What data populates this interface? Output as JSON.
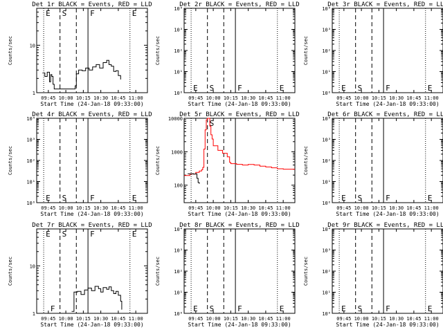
{
  "figure": {
    "x_tick_labels": [
      "09:45",
      "10:00",
      "10:15",
      "10:30",
      "10:45",
      "11:00"
    ],
    "x_axis_label": "Start Time (24-Jan-18 09:33:00)",
    "y_axis_label": "Counts/sec",
    "colors": {
      "events": "#000000",
      "lld": "#ff0000",
      "axes": "#000000",
      "background": "#ffffff"
    }
  },
  "chart_data": [
    {
      "type": "line",
      "title": "Det 1r BLACK = Events, RED = LLD",
      "ylabel": "Counts/sec",
      "xlabel": "Start Time (24-Jan-18 09:33:00)",
      "y_scale": "log",
      "ylim": [
        1,
        60
      ],
      "y_ticks": [
        {
          "v": 1,
          "t": "1"
        },
        {
          "v": 10,
          "t": "10"
        }
      ],
      "xlim": [
        "09:35",
        "11:10"
      ],
      "events_series": [
        [
          "09:40",
          2.6
        ],
        [
          "09:42",
          2.2
        ],
        [
          "09:44",
          2.7
        ],
        [
          "09:46",
          1.7
        ],
        [
          "09:47",
          2.4
        ],
        [
          "09:48",
          2.2
        ],
        [
          "09:49",
          1.5
        ],
        [
          "09:50",
          1.2
        ],
        [
          "10:08",
          1.4
        ],
        [
          "10:09",
          2.5
        ],
        [
          "10:11",
          3.0
        ],
        [
          "10:14",
          2.9
        ],
        [
          "10:17",
          3.3
        ],
        [
          "10:20",
          3.0
        ],
        [
          "10:23",
          3.5
        ],
        [
          "10:26",
          3.9
        ],
        [
          "10:29",
          3.3
        ],
        [
          "10:32",
          4.3
        ],
        [
          "10:35",
          4.8
        ],
        [
          "10:37",
          3.9
        ],
        [
          "10:39",
          3.6
        ],
        [
          "10:41",
          2.8
        ],
        [
          "10:43",
          2.9
        ],
        [
          "10:45",
          2.3
        ],
        [
          "10:47",
          1.9
        ]
      ],
      "lld_series": [],
      "markers": [
        {
          "label": "E",
          "time": "09:41",
          "pos": "top"
        },
        {
          "label": "S",
          "time": "09:55",
          "pos": "top"
        },
        {
          "label": "F",
          "time": "10:19",
          "pos": "top"
        },
        {
          "label": "E",
          "time": "10:55",
          "pos": "top"
        }
      ]
    },
    {
      "type": "line",
      "title": "Det 2r BLACK = Events, RED = LLD",
      "ylabel": "Counts/sec",
      "xlabel": "Start Time (24-Jan-18 09:33:00)",
      "y_scale": "log",
      "ylim": [
        1,
        10000
      ],
      "y_ticks": [
        {
          "v": 1,
          "t": "10⁰"
        },
        {
          "v": 10,
          "t": "10¹"
        },
        {
          "v": 100,
          "t": "10²"
        },
        {
          "v": 1000,
          "t": "10³"
        },
        {
          "v": 10000,
          "t": "10⁴"
        }
      ],
      "xlim": [
        "09:35",
        "11:10"
      ],
      "events_series": [],
      "lld_series": [],
      "markers": [
        {
          "label": "E",
          "time": "09:41",
          "pos": "bottom"
        },
        {
          "label": "S",
          "time": "09:55",
          "pos": "bottom"
        },
        {
          "label": "F",
          "time": "10:19",
          "pos": "bottom"
        },
        {
          "label": "E",
          "time": "10:55",
          "pos": "bottom"
        }
      ]
    },
    {
      "type": "line",
      "title": "Det 3r BLACK = Events, RED = LLD",
      "ylabel": "Counts/sec",
      "xlabel": "Start Time (24-Jan-18 09:33:00)",
      "y_scale": "log",
      "ylim": [
        1,
        10000
      ],
      "y_ticks": [
        {
          "v": 1,
          "t": "10⁰"
        },
        {
          "v": 10,
          "t": "10¹"
        },
        {
          "v": 100,
          "t": "10²"
        },
        {
          "v": 1000,
          "t": "10³"
        },
        {
          "v": 10000,
          "t": "10⁴"
        }
      ],
      "xlim": [
        "09:35",
        "11:10"
      ],
      "events_series": [],
      "lld_series": [],
      "markers": [
        {
          "label": "E",
          "time": "09:41",
          "pos": "bottom"
        },
        {
          "label": "S",
          "time": "09:55",
          "pos": "bottom"
        },
        {
          "label": "F",
          "time": "10:19",
          "pos": "bottom"
        },
        {
          "label": "E",
          "time": "10:55",
          "pos": "bottom"
        }
      ]
    },
    {
      "type": "line",
      "title": "Det 4r BLACK = Events, RED = LLD",
      "ylabel": "Counts/sec",
      "xlabel": "Start Time (24-Jan-18 09:33:00)",
      "y_scale": "log",
      "ylim": [
        1,
        10000
      ],
      "y_ticks": [
        {
          "v": 1,
          "t": "10⁰"
        },
        {
          "v": 10,
          "t": "10¹"
        },
        {
          "v": 100,
          "t": "10²"
        },
        {
          "v": 1000,
          "t": "10³"
        },
        {
          "v": 10000,
          "t": "10⁴"
        }
      ],
      "xlim": [
        "09:35",
        "11:10"
      ],
      "events_series": [],
      "lld_series": [],
      "markers": [
        {
          "label": "E",
          "time": "09:41",
          "pos": "bottom"
        },
        {
          "label": "S",
          "time": "09:55",
          "pos": "bottom"
        },
        {
          "label": "F",
          "time": "10:19",
          "pos": "bottom"
        },
        {
          "label": "E",
          "time": "10:55",
          "pos": "bottom"
        }
      ]
    },
    {
      "type": "line",
      "title": "Det 5r BLACK = Events, RED = LLD",
      "ylabel": "Counts/sec",
      "xlabel": "Start Time (24-Jan-18 09:33:00)",
      "y_scale": "log",
      "ylim": [
        30,
        10000
      ],
      "y_ticks": [
        {
          "v": 100,
          "t": "100"
        },
        {
          "v": 1000,
          "t": "1000"
        },
        {
          "v": 10000,
          "t": "10000"
        }
      ],
      "xlim": [
        "09:35",
        "11:10"
      ],
      "events_series": [
        [
          "09:38",
          220
        ],
        [
          "09:43",
          215
        ],
        [
          "09:45",
          220
        ],
        [
          "09:46",
          160
        ],
        [
          "09:47",
          120
        ],
        [
          "09:48",
          110
        ]
      ],
      "lld_series": [
        [
          "09:35",
          195
        ],
        [
          "09:40",
          215
        ],
        [
          "09:45",
          240
        ],
        [
          "09:48",
          265
        ],
        [
          "09:50",
          290
        ],
        [
          "09:51",
          340
        ],
        [
          "09:52",
          1200
        ],
        [
          "09:53",
          4500
        ],
        [
          "09:54",
          9000
        ],
        [
          "09:55",
          10000
        ],
        [
          "09:56",
          10000
        ],
        [
          "09:57",
          5800
        ],
        [
          "09:58",
          3200
        ],
        [
          "09:59",
          2400
        ],
        [
          "10:00",
          1500
        ],
        [
          "10:04",
          1100
        ],
        [
          "10:08",
          900
        ],
        [
          "10:12",
          700
        ],
        [
          "10:14",
          480
        ],
        [
          "10:15",
          440
        ],
        [
          "10:20",
          420
        ],
        [
          "10:25",
          400
        ],
        [
          "10:30",
          415
        ],
        [
          "10:35",
          400
        ],
        [
          "10:40",
          370
        ],
        [
          "10:45",
          350
        ],
        [
          "10:50",
          330
        ],
        [
          "10:55",
          310
        ],
        [
          "11:00",
          300
        ],
        [
          "11:05",
          300
        ],
        [
          "11:10",
          300
        ]
      ],
      "markers": [
        {
          "label": "S",
          "time": "09:55",
          "pos": "top"
        }
      ]
    },
    {
      "type": "line",
      "title": "Det 6r BLACK = Events, RED = LLD",
      "ylabel": "Counts/sec",
      "xlabel": "Start Time (24-Jan-18 09:33:00)",
      "y_scale": "log",
      "ylim": [
        1,
        10000
      ],
      "y_ticks": [
        {
          "v": 1,
          "t": "10⁰"
        },
        {
          "v": 10,
          "t": "10¹"
        },
        {
          "v": 100,
          "t": "10²"
        },
        {
          "v": 1000,
          "t": "10³"
        },
        {
          "v": 10000,
          "t": "10⁴"
        }
      ],
      "xlim": [
        "09:35",
        "11:10"
      ],
      "events_series": [],
      "lld_series": [],
      "markers": [
        {
          "label": "E",
          "time": "09:41",
          "pos": "bottom"
        },
        {
          "label": "S",
          "time": "09:55",
          "pos": "bottom"
        },
        {
          "label": "F",
          "time": "10:19",
          "pos": "bottom"
        },
        {
          "label": "E",
          "time": "10:55",
          "pos": "bottom"
        }
      ]
    },
    {
      "type": "line",
      "title": "Det 7r BLACK = Events, RED = LLD",
      "ylabel": "Counts/sec",
      "xlabel": "Start Time (24-Jan-18 09:33:00)",
      "y_scale": "log",
      "ylim": [
        1,
        60
      ],
      "y_ticks": [
        {
          "v": 1,
          "t": "1"
        },
        {
          "v": 10,
          "t": "10"
        }
      ],
      "xlim": [
        "09:35",
        "11:10"
      ],
      "events_series": [
        [
          "10:05",
          1.1
        ],
        [
          "10:07",
          2.8
        ],
        [
          "10:10",
          2.9
        ],
        [
          "10:13",
          2.5
        ],
        [
          "10:16",
          3.1
        ],
        [
          "10:19",
          3.4
        ],
        [
          "10:22",
          3.0
        ],
        [
          "10:25",
          3.7
        ],
        [
          "10:28",
          3.3
        ],
        [
          "10:30",
          2.8
        ],
        [
          "10:32",
          3.5
        ],
        [
          "10:35",
          3.2
        ],
        [
          "10:37",
          3.6
        ],
        [
          "10:39",
          3.0
        ],
        [
          "10:41",
          2.6
        ],
        [
          "10:43",
          2.9
        ],
        [
          "10:45",
          2.4
        ],
        [
          "10:47",
          1.8
        ],
        [
          "10:48",
          1.2
        ]
      ],
      "lld_series": [],
      "markers": [
        {
          "label": "E",
          "time": "09:41",
          "pos": "top"
        },
        {
          "label": "S",
          "time": "09:55",
          "pos": "top"
        },
        {
          "label": "F",
          "time": "10:19",
          "pos": "top"
        },
        {
          "label": "E",
          "time": "10:55",
          "pos": "top"
        },
        {
          "label": "F",
          "time": "09:45",
          "pos": "bottom"
        }
      ]
    },
    {
      "type": "line",
      "title": "Det 8r BLACK = Events, RED = LLD",
      "ylabel": "Counts/sec",
      "xlabel": "Start Time (24-Jan-18 09:33:00)",
      "y_scale": "log",
      "ylim": [
        1,
        10000
      ],
      "y_ticks": [
        {
          "v": 1,
          "t": "10⁰"
        },
        {
          "v": 10,
          "t": "10¹"
        },
        {
          "v": 100,
          "t": "10²"
        },
        {
          "v": 1000,
          "t": "10³"
        },
        {
          "v": 10000,
          "t": "10⁴"
        }
      ],
      "xlim": [
        "09:35",
        "11:10"
      ],
      "events_series": [],
      "lld_series": [],
      "markers": [
        {
          "label": "E",
          "time": "09:41",
          "pos": "bottom"
        },
        {
          "label": "S",
          "time": "09:55",
          "pos": "bottom"
        },
        {
          "label": "F",
          "time": "10:19",
          "pos": "bottom"
        },
        {
          "label": "E",
          "time": "10:55",
          "pos": "bottom"
        }
      ]
    },
    {
      "type": "line",
      "title": "Det 9r BLACK = Events, RED = LLD",
      "ylabel": "Counts/sec",
      "xlabel": "Start Time (24-Jan-18 09:33:00)",
      "y_scale": "log",
      "ylim": [
        1,
        10000
      ],
      "y_ticks": [
        {
          "v": 1,
          "t": "10⁰"
        },
        {
          "v": 10,
          "t": "10¹"
        },
        {
          "v": 100,
          "t": "10²"
        },
        {
          "v": 1000,
          "t": "10³"
        },
        {
          "v": 10000,
          "t": "10⁴"
        }
      ],
      "xlim": [
        "09:35",
        "11:10"
      ],
      "events_series": [],
      "lld_series": [],
      "markers": [
        {
          "label": "E",
          "time": "09:41",
          "pos": "bottom"
        },
        {
          "label": "S",
          "time": "09:55",
          "pos": "bottom"
        },
        {
          "label": "F",
          "time": "10:19",
          "pos": "bottom"
        },
        {
          "label": "E",
          "time": "10:55",
          "pos": "bottom"
        }
      ]
    }
  ]
}
